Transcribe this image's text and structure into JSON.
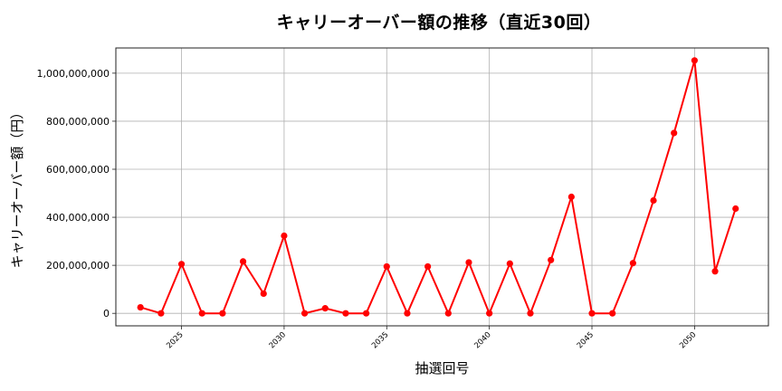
{
  "chart_data": {
    "type": "line",
    "title": "キャリーオーバー額の推移（直近30回）",
    "xlabel": "抽選回号",
    "ylabel": "キャリーオーバー額（円）",
    "x": [
      2023,
      2024,
      2025,
      2026,
      2027,
      2028,
      2029,
      2030,
      2031,
      2032,
      2033,
      2034,
      2035,
      2036,
      2037,
      2038,
      2039,
      2040,
      2041,
      2042,
      2043,
      2044,
      2045,
      2046,
      2047,
      2048,
      2049,
      2050,
      2051,
      2052
    ],
    "series": [
      {
        "name": "キャリーオーバー額",
        "color": "#ff0000",
        "marker": "circle",
        "values": [
          25000000,
          0,
          205000000,
          0,
          0,
          216000000,
          82000000,
          323000000,
          0,
          21000000,
          0,
          0,
          195000000,
          0,
          195000000,
          0,
          212000000,
          0,
          207000000,
          0,
          222000000,
          485000000,
          0,
          0,
          209000000,
          470000000,
          751000000,
          1053000000,
          175000000,
          436000000
        ]
      }
    ],
    "xticks": [
      2025,
      2030,
      2035,
      2040,
      2045,
      2050
    ],
    "xtick_labels": [
      "2025",
      "2030",
      "2035",
      "2040",
      "2045",
      "2050"
    ],
    "yticks": [
      0,
      200000000,
      400000000,
      600000000,
      800000000,
      1000000000
    ],
    "ytick_labels": [
      "0",
      "200,000,000",
      "400,000,000",
      "600,000,000",
      "800,000,000",
      "1,000,000,000"
    ],
    "xlim": [
      2021.8,
      2053.6
    ],
    "ylim": [
      -52000000,
      1105000000
    ],
    "grid": true,
    "legend": null
  }
}
